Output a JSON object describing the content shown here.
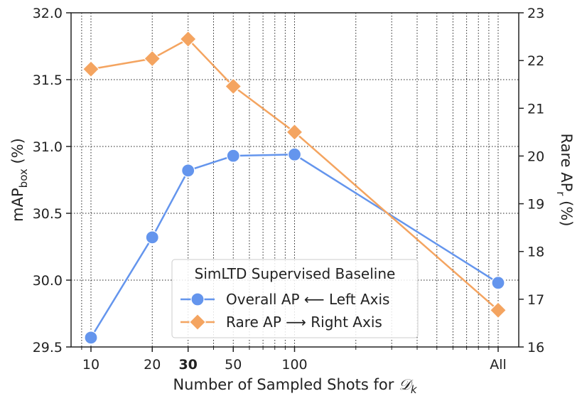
{
  "chart_data": {
    "type": "line",
    "xlabel_prefix": "Number of Sampled Shots for ",
    "xlabel_symbol": "𝒟",
    "xlabel_subscript": "k",
    "ylabel_left_main": "mAP",
    "ylabel_left_sub": "box",
    "ylabel_left_unit": " (%)",
    "ylabel_right_main": "Rare AP",
    "ylabel_right_sub": "r",
    "ylabel_right_unit": " (%)",
    "x_log_scale": true,
    "x_ticks": [
      {
        "label": "10",
        "value": 10,
        "bold": false
      },
      {
        "label": "20",
        "value": 20,
        "bold": false
      },
      {
        "label": "30",
        "value": 30,
        "bold": true
      },
      {
        "label": "50",
        "value": 50,
        "bold": false
      },
      {
        "label": "100",
        "value": 100,
        "bold": false
      },
      {
        "label": "All",
        "value": 1000,
        "bold": false
      }
    ],
    "ylim_left": [
      29.5,
      32.0
    ],
    "yticks_left": [
      "29.5",
      "30.0",
      "30.5",
      "31.0",
      "31.5",
      "32.0"
    ],
    "ylim_right": [
      16,
      23
    ],
    "yticks_right": [
      "16",
      "17",
      "18",
      "19",
      "20",
      "21",
      "22",
      "23"
    ],
    "grid": "dotted",
    "legend_title": "SimLTD Supervised Baseline",
    "legend_position": "bottom-center",
    "series": [
      {
        "name": "Overall AP ⟵ Left Axis",
        "axis": "left",
        "marker": "circle",
        "color": "#6495ED",
        "x": [
          10,
          20,
          30,
          50,
          100,
          1000
        ],
        "values": [
          29.57,
          30.32,
          30.82,
          30.93,
          30.94,
          29.98
        ]
      },
      {
        "name": "Rare AP ⟶ Right Axis",
        "axis": "right",
        "marker": "diamond",
        "color": "#F4A460",
        "x": [
          10,
          20,
          30,
          50,
          100,
          1000
        ],
        "values": [
          21.82,
          22.04,
          22.45,
          21.46,
          20.5,
          16.77
        ]
      }
    ]
  }
}
